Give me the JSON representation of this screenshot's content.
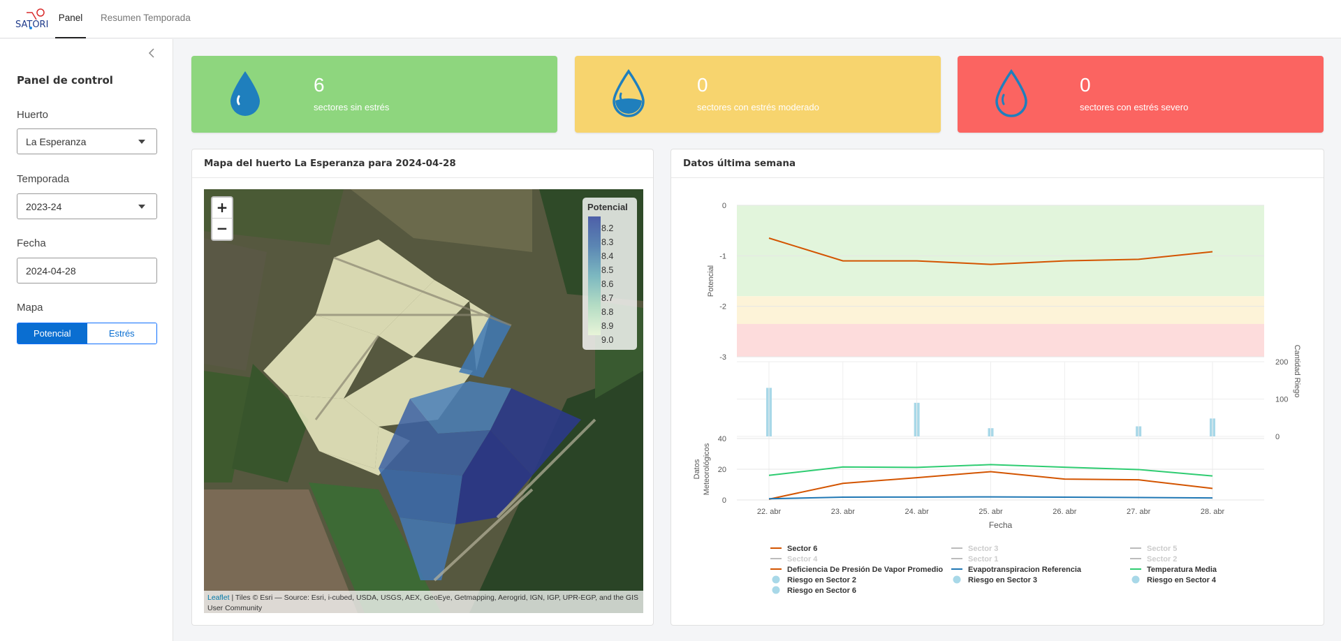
{
  "app": {
    "logo_text": "SATORI"
  },
  "nav": {
    "tabs": [
      {
        "label": "Panel"
      },
      {
        "label": "Resumen Temporada"
      }
    ]
  },
  "sidebar": {
    "title": "Panel de control",
    "huerto": {
      "label": "Huerto",
      "value": "La Esperanza"
    },
    "temporada": {
      "label": "Temporada",
      "value": "2023-24"
    },
    "fecha": {
      "label": "Fecha",
      "value": "2024-04-28"
    },
    "mapa": {
      "label": "Mapa",
      "options": [
        {
          "label": "Potencial",
          "selected": true
        },
        {
          "label": "Estrés",
          "selected": false
        }
      ]
    }
  },
  "kpis": [
    {
      "value": "6",
      "label": "sectores sin estrés",
      "color": "#8ed67e"
    },
    {
      "value": "0",
      "label": "sectores con estrés moderado",
      "color": "#f7d46e"
    },
    {
      "value": "0",
      "label": "sectores con estrés severo",
      "color": "#fb6461"
    }
  ],
  "map_card": {
    "title": "Mapa del huerto La Esperanza para 2024-04-28",
    "zoom_in": "+",
    "zoom_out": "−",
    "legend": {
      "title": "Potencial",
      "ticks": [
        "8.2",
        "8.3",
        "8.4",
        "8.5",
        "8.6",
        "8.7",
        "8.8",
        "8.9",
        "9.0"
      ]
    },
    "attribution": {
      "link": "Leaflet",
      "text": " | Tiles © Esri — Source: Esri, i-cubed, USDA, USGS, AEX, GeoEye, Getmapping, Aerogrid, IGN, IGP, UPR-EGP, and the GIS User Community"
    }
  },
  "chart_card": {
    "title": "Datos última semana"
  },
  "chart_data": {
    "type": "line",
    "x": [
      "22. abr",
      "23. abr",
      "24. abr",
      "25. abr",
      "26. abr",
      "27. abr",
      "28. abr"
    ],
    "xlabel": "Fecha",
    "panels": {
      "potencial": {
        "ylabel": "Potencial",
        "ylim": [
          -3,
          0
        ],
        "ticks": [
          "0",
          "-1",
          "-2",
          "-3"
        ],
        "bands": [
          {
            "from": 0,
            "to": -1.8,
            "color": "#e2f5dc"
          },
          {
            "from": -1.8,
            "to": -2.35,
            "color": "#fdf3d8"
          },
          {
            "from": -2.35,
            "to": -3,
            "color": "#fddcdc"
          }
        ],
        "series": [
          {
            "name": "Sector 6",
            "color": "#d35400",
            "values": [
              -0.65,
              -1.1,
              -1.1,
              -1.17,
              -1.1,
              -1.07,
              -0.92
            ]
          }
        ]
      },
      "riego": {
        "ylabel": "Cantidad Riego",
        "ylim": [
          0,
          200
        ],
        "ticks": [
          "200",
          "100",
          "0"
        ],
        "bars": [
          {
            "x": "22. abr",
            "value": 130
          },
          {
            "x": "24. abr",
            "value": 90
          },
          {
            "x": "25. abr",
            "value": 22
          },
          {
            "x": "27. abr",
            "value": 27
          },
          {
            "x": "28. abr",
            "value": 48
          }
        ]
      },
      "meteo": {
        "ylabel": "Datos Meteorológicos",
        "ylim": [
          0,
          40
        ],
        "ticks": [
          "40",
          "20",
          "0"
        ],
        "series": [
          {
            "name": "Temperatura Media",
            "color": "#2ecc71",
            "values": [
              16,
              21.5,
              21.2,
              23,
              21.3,
              19.8,
              15.6
            ]
          },
          {
            "name": "Deficiencia De Presión De Vapor Promedio",
            "color": "#d35400",
            "values": [
              0.5,
              10.8,
              14.5,
              18.4,
              13.6,
              13.1,
              7.5
            ]
          },
          {
            "name": "Evapotranspiracion Referencia",
            "color": "#1f77b4",
            "values": [
              0.8,
              1.8,
              1.9,
              2.0,
              1.8,
              1.6,
              1.3
            ]
          }
        ]
      }
    },
    "legend": [
      {
        "name": "Sector 6",
        "kind": "line",
        "color": "#d35400",
        "active": true
      },
      {
        "name": "Sector 3",
        "kind": "line",
        "color": "#bbbbbb",
        "active": false
      },
      {
        "name": "Sector 5",
        "kind": "line",
        "color": "#bbbbbb",
        "active": false
      },
      {
        "name": "Sector 4",
        "kind": "line",
        "color": "#bbbbbb",
        "active": false
      },
      {
        "name": "Sector 1",
        "kind": "line",
        "color": "#bbbbbb",
        "active": false
      },
      {
        "name": "Sector 2",
        "kind": "line",
        "color": "#bbbbbb",
        "active": false
      },
      {
        "name": "Deficiencia De Presión De Vapor Promedio",
        "kind": "line",
        "color": "#d35400",
        "active": true
      },
      {
        "name": "Evapotranspiracion Referencia",
        "kind": "line",
        "color": "#1f77b4",
        "active": true
      },
      {
        "name": "Temperatura Media",
        "kind": "line",
        "color": "#2ecc71",
        "active": true
      },
      {
        "name": "Riesgo en Sector 2",
        "kind": "dot",
        "color": "#a8d8e8",
        "active": true
      },
      {
        "name": "Riesgo en Sector 3",
        "kind": "dot",
        "color": "#a8d8e8",
        "active": true
      },
      {
        "name": "Riesgo en Sector 4",
        "kind": "dot",
        "color": "#a8d8e8",
        "active": true
      },
      {
        "name": "Riesgo en Sector 6",
        "kind": "dot",
        "color": "#a8d8e8",
        "active": true
      }
    ]
  }
}
